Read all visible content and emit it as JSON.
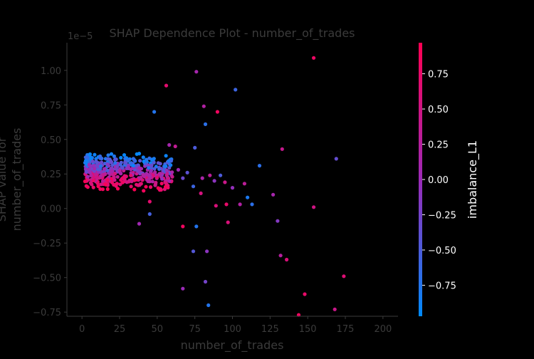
{
  "chart_data": {
    "type": "scatter",
    "title": "SHAP Dependence Plot - number_of_trades",
    "xlabel": "number_of_trades",
    "ylabel_line1": "SHAP value for",
    "ylabel_line2": "number_of_trades",
    "y_scale_label": "1e−5",
    "xlim": [
      -10,
      210
    ],
    "ylim": [
      -0.78,
      1.2
    ],
    "x_ticks": [
      0,
      25,
      50,
      75,
      100,
      125,
      150,
      175,
      200
    ],
    "x_tick_labels": [
      "0",
      "25",
      "50",
      "75",
      "100",
      "125",
      "150",
      "175",
      "200"
    ],
    "y_ticks": [
      -0.75,
      -0.5,
      -0.25,
      0.0,
      0.25,
      0.5,
      0.75,
      1.0
    ],
    "y_tick_labels": [
      "−0.75",
      "−0.50",
      "−0.25",
      "0.00",
      "0.25",
      "0.50",
      "0.75",
      "1.00"
    ],
    "colorbar": {
      "label": "imbalance_L1",
      "range": [
        -0.97,
        0.97
      ],
      "ticks": [
        0.75,
        0.5,
        0.25,
        0.0,
        -0.25,
        -0.5,
        -0.75
      ],
      "tick_labels": [
        "0.75",
        "0.50",
        "0.25",
        "0.00",
        "−0.25",
        "−0.50",
        "−0.75"
      ],
      "color_low": "#008afb",
      "color_mid": "#9c2ab8",
      "color_high": "#ff0052"
    },
    "points": [
      [
        154,
        1.09,
        0.8
      ],
      [
        76,
        0.99,
        0.1
      ],
      [
        56,
        0.89,
        0.7
      ],
      [
        102,
        0.86,
        -0.6
      ],
      [
        81,
        0.74,
        0.2
      ],
      [
        90,
        0.7,
        0.85
      ],
      [
        48,
        0.7,
        -0.75
      ],
      [
        82,
        0.61,
        -0.7
      ],
      [
        58,
        0.46,
        0.1
      ],
      [
        62,
        0.45,
        0.35
      ],
      [
        75,
        0.44,
        -0.5
      ],
      [
        133,
        0.43,
        0.4
      ],
      [
        169,
        0.36,
        -0.35
      ],
      [
        118,
        0.31,
        -0.7
      ],
      [
        55,
        0.29,
        -0.2
      ],
      [
        64,
        0.28,
        0.05
      ],
      [
        70,
        0.26,
        -0.4
      ],
      [
        85,
        0.24,
        0.3
      ],
      [
        92,
        0.24,
        -0.5
      ],
      [
        60,
        0.23,
        0.5
      ],
      [
        67,
        0.22,
        -0.3
      ],
      [
        80,
        0.22,
        0.15
      ],
      [
        88,
        0.2,
        -0.1
      ],
      [
        95,
        0.19,
        0.45
      ],
      [
        108,
        0.18,
        0.3
      ],
      [
        74,
        0.16,
        -0.6
      ],
      [
        100,
        0.15,
        -0.05
      ],
      [
        55,
        0.14,
        0.6
      ],
      [
        79,
        0.11,
        0.55
      ],
      [
        127,
        0.1,
        0.1
      ],
      [
        110,
        0.08,
        -0.8
      ],
      [
        45,
        0.05,
        0.7
      ],
      [
        96,
        0.03,
        0.75
      ],
      [
        105,
        0.03,
        0.2
      ],
      [
        113,
        0.03,
        -0.7
      ],
      [
        89,
        0.02,
        0.6
      ],
      [
        154,
        0.01,
        0.5
      ],
      [
        45,
        -0.04,
        -0.55
      ],
      [
        38,
        -0.11,
        0.05
      ],
      [
        97,
        -0.1,
        0.6
      ],
      [
        130,
        -0.09,
        -0.15
      ],
      [
        67,
        -0.13,
        0.85
      ],
      [
        76,
        -0.13,
        -0.75
      ],
      [
        74,
        -0.31,
        -0.45
      ],
      [
        83,
        -0.31,
        -0.1
      ],
      [
        132,
        -0.34,
        0.25
      ],
      [
        136,
        -0.37,
        0.6
      ],
      [
        174,
        -0.49,
        0.65
      ],
      [
        82,
        -0.53,
        -0.25
      ],
      [
        67,
        -0.58,
        0.0
      ],
      [
        148,
        -0.62,
        0.75
      ],
      [
        84,
        -0.7,
        -0.75
      ],
      [
        168,
        -0.73,
        0.45
      ],
      [
        144,
        -0.77,
        0.85
      ]
    ]
  }
}
